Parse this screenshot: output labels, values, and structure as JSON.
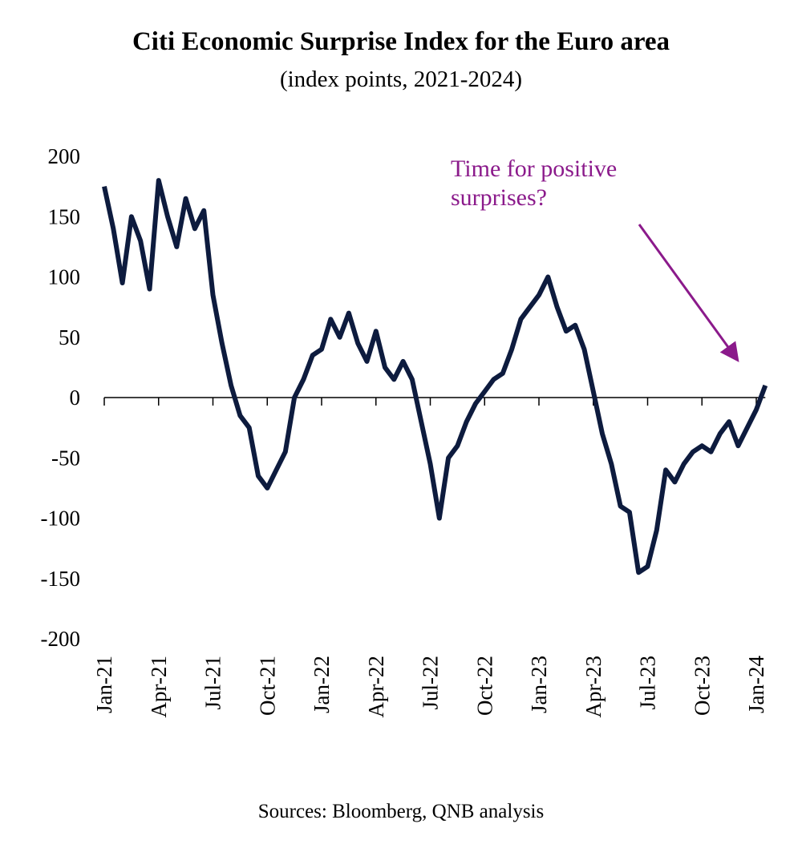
{
  "chart_data": {
    "type": "line",
    "title": "Citi Economic Surprise Index for the Euro area",
    "subtitle": "(index points, 2021-2024)",
    "source": "Sources: Bloomberg, QNB analysis",
    "annotation": [
      "Time for positive",
      "surprises?"
    ],
    "annotation_color": "#8b1a8b",
    "categories": [
      "Jan-21",
      null,
      null,
      null,
      null,
      null,
      "Apr-21",
      null,
      null,
      null,
      null,
      null,
      "Jul-21",
      null,
      null,
      null,
      null,
      null,
      "Oct-21",
      null,
      null,
      null,
      null,
      null,
      "Jan-22",
      null,
      null,
      null,
      null,
      null,
      "Apr-22",
      null,
      null,
      null,
      null,
      null,
      "Jul-22",
      null,
      null,
      null,
      null,
      null,
      "Oct-22",
      null,
      null,
      null,
      null,
      null,
      "Jan-23",
      null,
      null,
      null,
      null,
      null,
      "Apr-23",
      null,
      null,
      null,
      null,
      null,
      "Jul-23",
      null,
      null,
      null,
      null,
      null,
      "Oct-23",
      null,
      null,
      null,
      null,
      null,
      "Jan-24",
      null
    ],
    "series": [
      {
        "name": "Citi Economic Surprise Index",
        "color": "#0d1b3e",
        "values": [
          175,
          140,
          95,
          150,
          130,
          90,
          180,
          150,
          125,
          165,
          140,
          155,
          85,
          45,
          10,
          -15,
          -25,
          -65,
          -75,
          -60,
          -45,
          0,
          15,
          35,
          40,
          65,
          50,
          70,
          45,
          30,
          55,
          25,
          15,
          30,
          15,
          -20,
          -55,
          -100,
          -50,
          -40,
          -20,
          -5,
          5,
          15,
          20,
          40,
          65,
          75,
          85,
          100,
          75,
          55,
          60,
          40,
          5,
          -30,
          -55,
          -90,
          -95,
          -145,
          -140,
          -110,
          -60,
          -70,
          -55,
          -45,
          -40,
          -45,
          -30,
          -20,
          -40,
          -25,
          -10,
          10
        ]
      }
    ],
    "ylim": [
      -200,
      200
    ],
    "yticks": [
      -200,
      -150,
      -100,
      -50,
      0,
      50,
      100,
      150,
      200
    ],
    "grid": false
  }
}
